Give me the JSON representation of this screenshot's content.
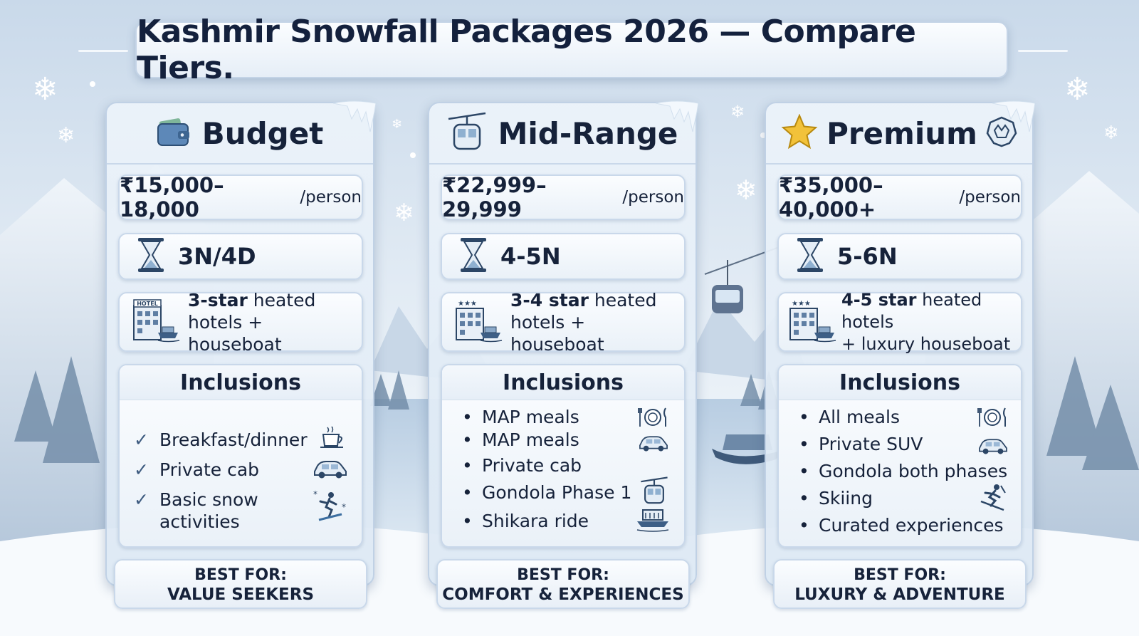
{
  "title": "Kashmir Snowfall Packages 2026 — Compare Tiers.",
  "colors": {
    "accent": "#16223a",
    "card_border": "#c0d1e5",
    "background": "#dfe9f3"
  },
  "tiers": [
    {
      "name": "Budget",
      "icon": "wallet-icon",
      "price": "₹15,000–18,000",
      "price_unit": "/person",
      "duration": "3N/4D",
      "hotel_bold": "3-star",
      "hotel_line1_rest": " heated",
      "hotel_line2": "hotels + houseboat",
      "hotel_sign": "HOTEL",
      "inclusions_title": "Inclusions",
      "inclusions": [
        {
          "label": "Breakfast/dinner",
          "icon": "coffee-cup-icon"
        },
        {
          "label": "Private cab",
          "icon": "car-icon"
        },
        {
          "label": "Basic snow",
          "label2": "activities",
          "icon": "snow-activity-icon"
        }
      ],
      "best_for_label": "BEST FOR:",
      "best_for": "VALUE SEEKERS"
    },
    {
      "name": "Mid-Range",
      "icon": "gondola-icon",
      "price": "₹22,999–29,999",
      "price_unit": "/person",
      "duration": "4-5N",
      "hotel_bold": "3-4 star",
      "hotel_line1_rest": " heated",
      "hotel_line2": "hotels + houseboat",
      "hotel_sign": "★★★",
      "inclusions_title": "Inclusions",
      "inclusions": [
        {
          "label": "MAP meals",
          "icon": "plate-cutlery-icon"
        },
        {
          "label": "MAP meals",
          "icon": "car-icon"
        },
        {
          "label": "Private cab",
          "icon": ""
        },
        {
          "label": "Gondola Phase 1",
          "icon": "gondola-icon"
        },
        {
          "label": "Shikara ride",
          "icon": "shikara-boat-icon"
        }
      ],
      "best_for_label": "BEST FOR:",
      "best_for": "COMFORT & EXPERIENCES"
    },
    {
      "name": "Premium",
      "icon": "star-icon",
      "price": "₹35,000–40,000+",
      "price_unit": "/person",
      "duration": "5-6N",
      "hotel_bold": "4-5 star",
      "hotel_line1_rest": " heated hotels",
      "hotel_line2": "+ luxury houseboat",
      "hotel_sign": "★★★",
      "inclusions_title": "Inclusions",
      "inclusions": [
        {
          "label": "All meals",
          "icon": "plate-cutlery-icon"
        },
        {
          "label": "Private SUV",
          "icon": "car-icon"
        },
        {
          "label": "Gondola both phases",
          "icon": ""
        },
        {
          "label": "Skiing",
          "icon": "skier-icon"
        },
        {
          "label": "Curated experiences",
          "icon": ""
        }
      ],
      "best_for_label": "BEST FOR:",
      "best_for": "LUXURY & ADVENTURE"
    }
  ]
}
